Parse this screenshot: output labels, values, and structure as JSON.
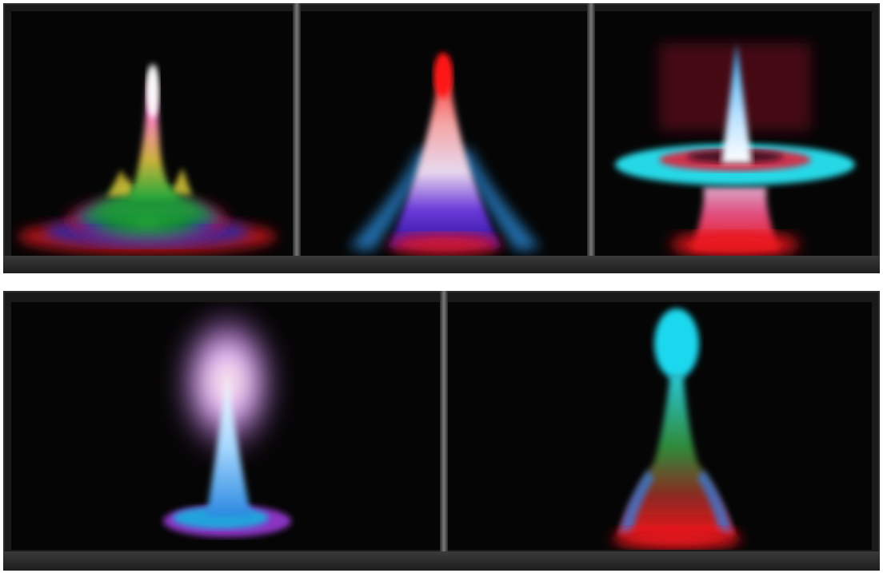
{
  "figure": {
    "rows": [
      {
        "panels": [
          {
            "id": "panel-1",
            "subject": "plume-green-pink"
          },
          {
            "id": "panel-2",
            "subject": "cone-red-tip-blue-base"
          },
          {
            "id": "panel-3",
            "subject": "cone-cyan-ring-red-base"
          }
        ]
      },
      {
        "panels": [
          {
            "id": "panel-4",
            "subject": "cone-violet-halo"
          },
          {
            "id": "panel-5",
            "subject": "stalk-cyan-head-red-base"
          }
        ]
      }
    ],
    "background": "#050505",
    "frame_color": "#1a1a1a"
  }
}
